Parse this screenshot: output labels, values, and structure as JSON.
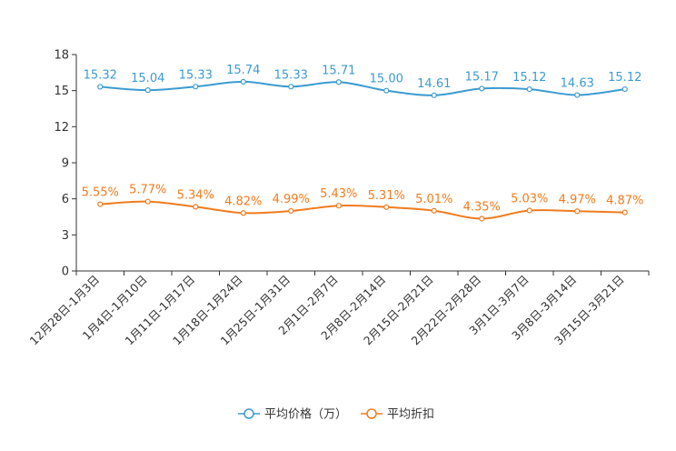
{
  "chart_data": {
    "type": "line",
    "title": "",
    "xlabel": "",
    "ylabel": "",
    "ylim": [
      0,
      18
    ],
    "yticks": [
      0,
      3,
      6,
      9,
      12,
      15,
      18
    ],
    "grid": false,
    "legend_position": "bottom-center",
    "categories": [
      "12月28日-1月3日",
      "1月4日-1月10日",
      "1月11日-1月17日",
      "1月18日-1月24日",
      "1月25日-1月31日",
      "2月1日-2月7日",
      "2月8日-2月14日",
      "2月15日-2月21日",
      "2月22日-2月28日",
      "3月1日-3月7日",
      "3月8日-3月14日",
      "3月15日-3月21日"
    ],
    "series": [
      {
        "name": "平均价格（万）",
        "color": "#3b9bd0",
        "values": [
          15.32,
          15.04,
          15.33,
          15.74,
          15.33,
          15.71,
          15.0,
          14.61,
          15.17,
          15.12,
          14.63,
          15.12
        ],
        "labels": [
          "15.32",
          "15.04",
          "15.33",
          "15.74",
          "15.33",
          "15.71",
          "15.00",
          "14.61",
          "15.17",
          "15.12",
          "14.63",
          "15.12"
        ]
      },
      {
        "name": "平均折扣",
        "color": "#f07c1e",
        "values": [
          5.55,
          5.77,
          5.34,
          4.82,
          4.99,
          5.43,
          5.31,
          5.01,
          4.35,
          5.03,
          4.97,
          4.87
        ],
        "labels": [
          "5.55%",
          "5.77%",
          "5.34%",
          "4.82%",
          "4.99%",
          "5.43%",
          "5.31%",
          "5.01%",
          "4.35%",
          "5.03%",
          "4.97%",
          "4.87%"
        ]
      }
    ]
  }
}
